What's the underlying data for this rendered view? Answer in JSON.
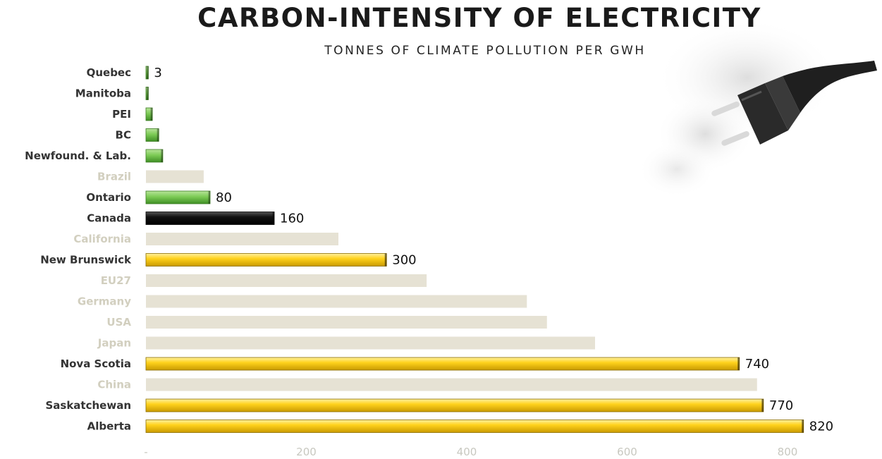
{
  "chart_data": {
    "type": "bar",
    "orientation": "horizontal",
    "title": "CARBON-INTENSITY OF ELECTRICITY",
    "subtitle": "TONNES OF CLIMATE POLLUTION PER GWH",
    "xlabel": "",
    "ylabel": "",
    "xlim": [
      0,
      880
    ],
    "ticks": [
      {
        "value": 0,
        "label": "-"
      },
      {
        "value": 200,
        "label": "200"
      },
      {
        "value": 400,
        "label": "400"
      },
      {
        "value": 600,
        "label": "600"
      },
      {
        "value": 800,
        "label": "800"
      }
    ],
    "grid": false,
    "legend": "none",
    "bars": [
      {
        "category": "Quebec",
        "value": 3,
        "label": "3",
        "group": "green"
      },
      {
        "category": "Manitoba",
        "value": 3,
        "label": "",
        "group": "green"
      },
      {
        "category": "PEI",
        "value": 8,
        "label": "",
        "group": "green"
      },
      {
        "category": "BC",
        "value": 16,
        "label": "",
        "group": "green"
      },
      {
        "category": "Newfound. & Lab.",
        "value": 21,
        "label": "",
        "group": "green"
      },
      {
        "category": "Brazil",
        "value": 72,
        "label": "",
        "group": "other"
      },
      {
        "category": "Ontario",
        "value": 80,
        "label": "80",
        "group": "green"
      },
      {
        "category": "Canada",
        "value": 160,
        "label": "160",
        "group": "canada"
      },
      {
        "category": "California",
        "value": 240,
        "label": "",
        "group": "other"
      },
      {
        "category": "New Brunswick",
        "value": 300,
        "label": "300",
        "group": "yellow"
      },
      {
        "category": "EU27",
        "value": 350,
        "label": "",
        "group": "other"
      },
      {
        "category": "Germany",
        "value": 475,
        "label": "",
        "group": "other"
      },
      {
        "category": "USA",
        "value": 500,
        "label": "",
        "group": "other"
      },
      {
        "category": "Japan",
        "value": 560,
        "label": "",
        "group": "other"
      },
      {
        "category": "Nova Scotia",
        "value": 740,
        "label": "740",
        "group": "yellow"
      },
      {
        "category": "China",
        "value": 762,
        "label": "",
        "group": "other"
      },
      {
        "category": "Saskatchewan",
        "value": 770,
        "label": "770",
        "group": "yellow"
      },
      {
        "category": "Alberta",
        "value": 820,
        "label": "820",
        "group": "yellow"
      }
    ]
  },
  "colors": {
    "green": "#6cc04a",
    "canada": "#111111",
    "yellow": "#f2c200",
    "other": "#e6e2d4",
    "label_strong": "#333333",
    "label_faint": "#d2cfbf"
  }
}
